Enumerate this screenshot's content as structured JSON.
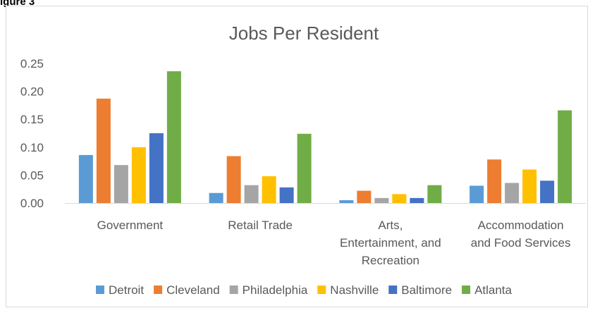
{
  "corner_label": "igure 3",
  "chart_data": {
    "type": "bar",
    "title": "Jobs Per Resident",
    "xlabel": "",
    "ylabel": "",
    "ylim": [
      0,
      0.25
    ],
    "yticks": [
      "0.00",
      "0.05",
      "0.10",
      "0.15",
      "0.20",
      "0.25"
    ],
    "grid": false,
    "legend_position": "bottom",
    "categories": [
      [
        "Government"
      ],
      [
        "Retail Trade"
      ],
      [
        "Arts,",
        "Entertainment, and",
        "Recreation"
      ],
      [
        "Accommodation",
        "and Food Services"
      ]
    ],
    "series": [
      {
        "name": "Detroit",
        "color": "#5b9bd5",
        "values": [
          0.086,
          0.018,
          0.005,
          0.031
        ]
      },
      {
        "name": "Cleveland",
        "color": "#ed7d31",
        "values": [
          0.187,
          0.084,
          0.022,
          0.078
        ]
      },
      {
        "name": "Philadelphia",
        "color": "#a5a5a5",
        "values": [
          0.068,
          0.032,
          0.009,
          0.036
        ]
      },
      {
        "name": "Nashville",
        "color": "#ffc000",
        "values": [
          0.1,
          0.048,
          0.016,
          0.06
        ]
      },
      {
        "name": "Baltimore",
        "color": "#4472c4",
        "values": [
          0.125,
          0.028,
          0.009,
          0.04
        ]
      },
      {
        "name": "Atlanta",
        "color": "#70ad47",
        "values": [
          0.236,
          0.124,
          0.032,
          0.166
        ]
      }
    ]
  }
}
